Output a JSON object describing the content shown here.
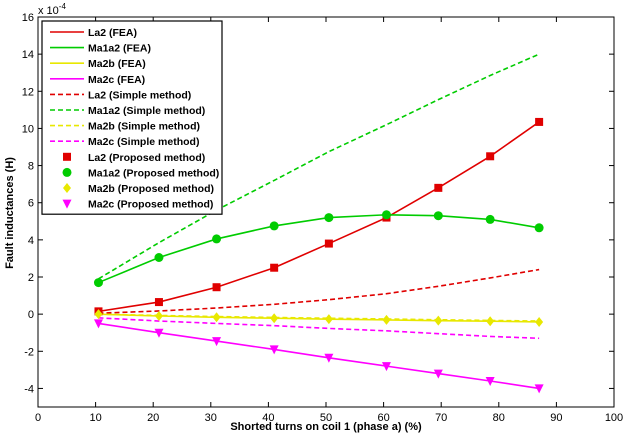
{
  "chart_data": {
    "type": "line",
    "xlabel": "Shorted turns on coil 1 (phase a) (%)",
    "ylabel": "Fault inductances (H)",
    "y_exponent": "x 10",
    "y_exponent_power": "-4",
    "xlim": [
      0,
      100
    ],
    "ylim": [
      -5,
      16
    ],
    "xticks": [
      0,
      10,
      20,
      30,
      40,
      50,
      60,
      70,
      80,
      90,
      100
    ],
    "yticks": [
      -4,
      -2,
      0,
      2,
      4,
      6,
      8,
      10,
      12,
      14,
      16
    ],
    "grid": false,
    "legend_position": "top-left",
    "x": [
      10.5,
      21,
      31,
      41,
      50.5,
      60.5,
      69.5,
      78.5,
      87
    ],
    "series": [
      {
        "name": "La2 (FEA)",
        "style": "solid",
        "color": "#e00000",
        "values": [
          0.15,
          0.65,
          1.45,
          2.5,
          3.8,
          5.2,
          6.8,
          8.5,
          10.35
        ]
      },
      {
        "name": "Ma1a2 (FEA)",
        "style": "solid",
        "color": "#00cc00",
        "values": [
          1.7,
          3.05,
          4.05,
          4.75,
          5.2,
          5.35,
          5.3,
          5.1,
          4.65
        ]
      },
      {
        "name": "Ma2b (FEA)",
        "style": "solid",
        "color": "#e8e800",
        "values": [
          0.0,
          -0.1,
          -0.17,
          -0.22,
          -0.27,
          -0.31,
          -0.35,
          -0.38,
          -0.42
        ]
      },
      {
        "name": "Ma2c  (FEA)",
        "style": "solid",
        "color": "#ff00ff",
        "values": [
          -0.5,
          -1.0,
          -1.45,
          -1.9,
          -2.35,
          -2.8,
          -3.2,
          -3.6,
          -4.0
        ]
      },
      {
        "name": "La2 (Simple method)",
        "style": "dashed",
        "color": "#e00000",
        "values": [
          0.05,
          0.17,
          0.33,
          0.53,
          0.78,
          1.1,
          1.5,
          1.95,
          2.4
        ]
      },
      {
        "name": "Ma1a2 (Simple method)",
        "style": "dashed",
        "color": "#00cc00",
        "values": [
          1.9,
          3.85,
          5.6,
          7.2,
          8.75,
          10.2,
          11.55,
          12.85,
          14.0
        ]
      },
      {
        "name": "Ma2b (Simple method)",
        "style": "dashed",
        "color": "#e8e800",
        "values": [
          0.0,
          -0.07,
          -0.13,
          -0.18,
          -0.22,
          -0.26,
          -0.3,
          -0.34,
          -0.37
        ]
      },
      {
        "name": "Ma2c  (Simple method)",
        "style": "dashed",
        "color": "#ff00ff",
        "values": [
          -0.2,
          -0.37,
          -0.5,
          -0.62,
          -0.77,
          -0.9,
          -1.05,
          -1.2,
          -1.3
        ]
      },
      {
        "name": "La2 (Proposed method)",
        "style": "marker",
        "marker": "square",
        "color": "#e00000",
        "values": [
          0.15,
          0.65,
          1.45,
          2.5,
          3.8,
          5.2,
          6.8,
          8.5,
          10.35
        ]
      },
      {
        "name": "Ma1a2 (Proposed method)",
        "style": "marker",
        "marker": "circle",
        "color": "#00cc00",
        "values": [
          1.7,
          3.05,
          4.05,
          4.75,
          5.2,
          5.35,
          5.3,
          5.1,
          4.65
        ]
      },
      {
        "name": "Ma2b (Proposed method)",
        "style": "marker",
        "marker": "diamond",
        "color": "#e8e800",
        "values": [
          0.0,
          -0.1,
          -0.17,
          -0.22,
          -0.27,
          -0.31,
          -0.35,
          -0.38,
          -0.42
        ]
      },
      {
        "name": "Ma2c  (Proposed method)",
        "style": "marker",
        "marker": "triangle-down",
        "color": "#ff00ff",
        "values": [
          -0.5,
          -1.0,
          -1.45,
          -1.9,
          -2.35,
          -2.8,
          -3.2,
          -3.6,
          -4.0
        ]
      }
    ]
  }
}
